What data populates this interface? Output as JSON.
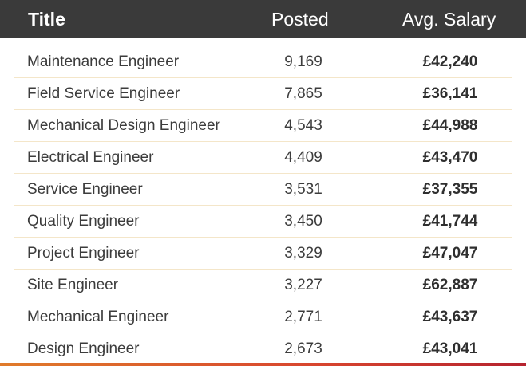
{
  "header": {
    "title_label": "Title",
    "posted_label": "Posted",
    "salary_label": "Avg. Salary"
  },
  "rows": [
    {
      "title": "Maintenance Engineer",
      "posted": "9,169",
      "salary": "£42,240"
    },
    {
      "title": "Field Service Engineer",
      "posted": "7,865",
      "salary": "£36,141"
    },
    {
      "title": "Mechanical Design Engineer",
      "posted": "4,543",
      "salary": "£44,988"
    },
    {
      "title": "Electrical Engineer",
      "posted": "4,409",
      "salary": "£43,470"
    },
    {
      "title": "Service Engineer",
      "posted": "3,531",
      "salary": "£37,355"
    },
    {
      "title": "Quality Engineer",
      "posted": "3,450",
      "salary": "£41,744"
    },
    {
      "title": "Project Engineer",
      "posted": "3,329",
      "salary": "£47,047"
    },
    {
      "title": "Site Engineer",
      "posted": "3,227",
      "salary": "£62,887"
    },
    {
      "title": "Mechanical Engineer",
      "posted": "2,771",
      "salary": "£43,637"
    },
    {
      "title": "Design Engineer",
      "posted": "2,673",
      "salary": "£43,041"
    }
  ],
  "colors": {
    "header_bg": "#3a3a3a",
    "row_divider": "#f4e6c9",
    "accent_bar": "#d8452f"
  }
}
